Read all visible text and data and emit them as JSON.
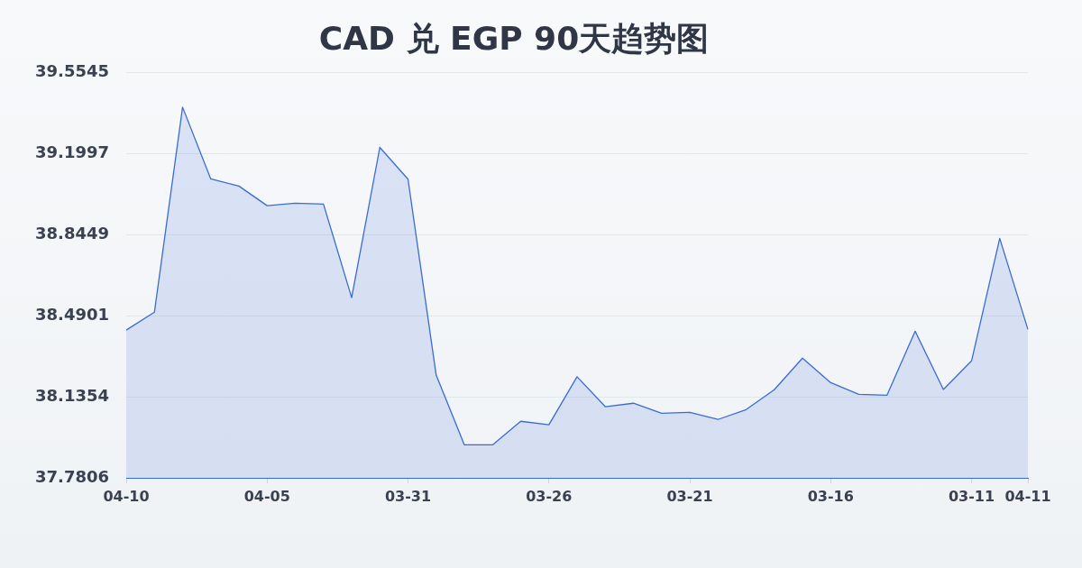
{
  "chart_data": {
    "type": "area",
    "title": "CAD 兑 EGP 90天趋势图",
    "categories": [
      "04-10",
      null,
      null,
      null,
      null,
      "04-05",
      null,
      null,
      null,
      null,
      "03-31",
      null,
      null,
      null,
      null,
      "03-26",
      null,
      null,
      null,
      null,
      "03-21",
      null,
      null,
      null,
      null,
      "03-16",
      null,
      null,
      null,
      null,
      "03-11",
      null,
      "04-11"
    ],
    "values": [
      38.427,
      38.505,
      39.402,
      39.088,
      39.057,
      38.971,
      38.982,
      38.978,
      38.569,
      39.226,
      39.087,
      38.23,
      37.925,
      37.925,
      38.028,
      38.013,
      38.223,
      38.092,
      38.107,
      38.063,
      38.067,
      38.036,
      38.079,
      38.166,
      38.304,
      38.197,
      38.146,
      38.142,
      38.422,
      38.167,
      38.292,
      38.828,
      38.43
    ],
    "color": "#3a6bd4",
    "ylim": [
      37.7806,
      39.5545
    ],
    "yticks": [
      37.7806,
      38.1354,
      38.4901,
      38.8449,
      39.1997,
      39.5545
    ],
    "grid": "y",
    "legend": false,
    "marker": "none"
  }
}
